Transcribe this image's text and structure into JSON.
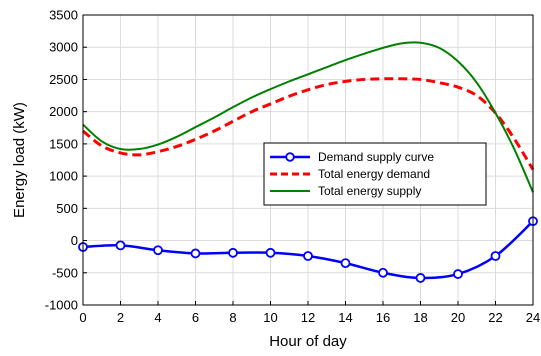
{
  "chart_data": {
    "type": "line",
    "xlabel": "Hour of day",
    "ylabel": "Energy load (kW)",
    "xlim": [
      0,
      24
    ],
    "ylim": [
      -1000,
      3500
    ],
    "xticks": [
      0,
      2,
      4,
      6,
      8,
      10,
      12,
      14,
      16,
      18,
      20,
      22,
      24
    ],
    "yticks": [
      -1000,
      -500,
      0,
      500,
      1000,
      1500,
      2000,
      2500,
      3000,
      3500
    ],
    "grid": true,
    "legend_position": "center-right",
    "series": [
      {
        "name": "Demand supply curve",
        "color": "#0000ff",
        "style": "solid-with-circle-markers",
        "x": [
          0,
          2,
          4,
          6,
          8,
          10,
          12,
          14,
          16,
          18,
          20,
          22,
          24
        ],
        "y": [
          -100,
          -75,
          -150,
          -200,
          -190,
          -190,
          -240,
          -350,
          -500,
          -580,
          -520,
          -240,
          300
        ]
      },
      {
        "name": "Total energy demand",
        "color": "#ff0000",
        "style": "dashed",
        "x": [
          0,
          1,
          2,
          3,
          4,
          5,
          6,
          7,
          8,
          9,
          10,
          11,
          12,
          13,
          14,
          15,
          16,
          17,
          18,
          19,
          20,
          21,
          22,
          23,
          24
        ],
        "y": [
          1700,
          1470,
          1360,
          1330,
          1380,
          1460,
          1570,
          1700,
          1850,
          2000,
          2120,
          2240,
          2340,
          2420,
          2470,
          2500,
          2510,
          2510,
          2500,
          2450,
          2380,
          2250,
          1980,
          1580,
          1100
        ]
      },
      {
        "name": "Total energy supply",
        "color": "#008000",
        "style": "solid",
        "x": [
          0,
          1,
          2,
          3,
          4,
          5,
          6,
          7,
          8,
          9,
          10,
          11,
          12,
          13,
          14,
          15,
          16,
          17,
          18,
          19,
          20,
          21,
          22,
          23,
          24
        ],
        "y": [
          1800,
          1540,
          1420,
          1420,
          1490,
          1610,
          1760,
          1910,
          2070,
          2220,
          2350,
          2470,
          2580,
          2690,
          2800,
          2900,
          2990,
          3060,
          3070,
          2990,
          2780,
          2450,
          1980,
          1420,
          750
        ]
      }
    ]
  }
}
